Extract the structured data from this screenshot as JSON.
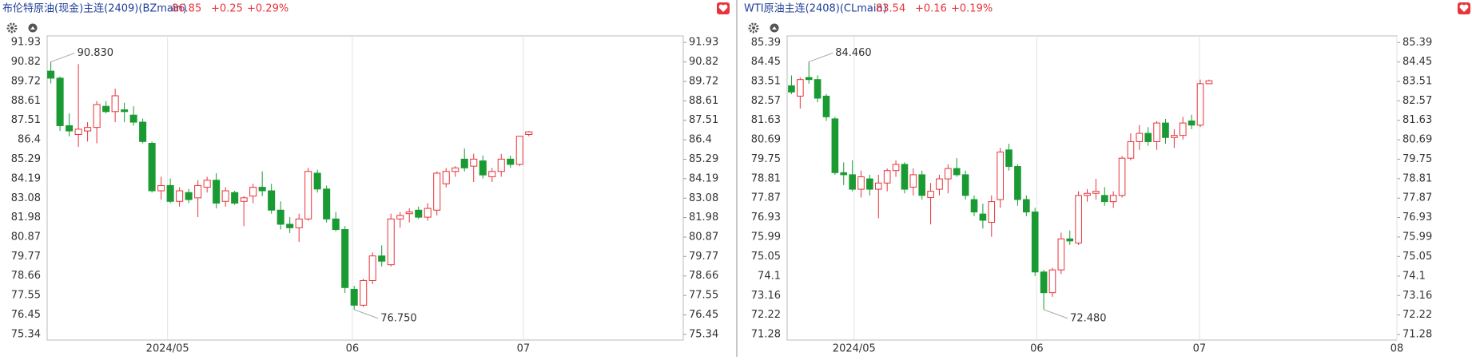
{
  "chart_data": [
    {
      "type": "candlestick",
      "title": "布伦特原油(现金)主连(2409)(BZmain)",
      "last": "86.85",
      "change": "+0.25",
      "change_pct": "+0.29%",
      "up_color": "#e8333a",
      "down_color": "#1a9a32",
      "open": [
        90.3,
        89.9,
        87.2,
        86.7,
        86.9,
        87.1,
        88.3,
        88.0,
        88.1,
        87.8,
        87.4,
        86.2,
        83.5,
        83.8,
        82.9,
        83.4,
        83.1,
        83.7,
        84.1,
        82.9,
        83.4,
        82.9,
        83.2,
        83.7,
        83.5,
        82.4,
        81.6,
        81.4,
        81.9,
        84.5,
        83.6,
        81.9,
        81.3,
        77.9,
        77.0,
        78.4,
        79.8,
        79.3,
        81.9,
        82.2,
        82.4,
        82.0,
        82.4,
        83.9,
        84.6,
        85.3,
        84.9,
        85.2,
        84.3,
        84.6,
        85.3,
        85.0,
        86.7
      ],
      "high": [
        90.83,
        90.0,
        87.9,
        90.7,
        87.4,
        88.6,
        88.6,
        89.3,
        88.5,
        88.3,
        87.6,
        86.3,
        84.3,
        84.2,
        83.7,
        83.6,
        84.1,
        84.3,
        84.5,
        83.7,
        83.5,
        83.2,
        83.9,
        84.6,
        83.9,
        82.9,
        82.0,
        82.2,
        84.8,
        84.7,
        83.8,
        82.3,
        81.5,
        78.1,
        78.5,
        80.0,
        80.4,
        82.2,
        82.3,
        82.5,
        82.6,
        82.8,
        84.6,
        84.8,
        84.9,
        85.9,
        85.6,
        85.5,
        84.8,
        85.6,
        85.5,
        86.6,
        86.9
      ],
      "low": [
        89.6,
        86.9,
        86.6,
        86.0,
        86.3,
        86.2,
        87.9,
        87.4,
        87.4,
        87.2,
        86.2,
        83.4,
        83.0,
        82.8,
        82.6,
        82.8,
        82.0,
        83.4,
        82.5,
        82.6,
        82.7,
        81.5,
        82.8,
        83.2,
        82.2,
        81.3,
        81.1,
        80.6,
        81.8,
        83.4,
        81.7,
        81.2,
        77.7,
        76.75,
        76.9,
        78.2,
        79.2,
        79.2,
        81.4,
        81.7,
        81.9,
        81.8,
        82.1,
        83.7,
        84.3,
        84.6,
        84.0,
        84.2,
        84.0,
        84.3,
        84.8,
        84.9,
        86.6
      ],
      "close": [
        89.9,
        87.2,
        86.9,
        87.0,
        87.1,
        88.4,
        88.0,
        88.9,
        88.0,
        87.4,
        86.3,
        83.5,
        83.8,
        82.9,
        83.5,
        83.0,
        83.8,
        84.1,
        82.8,
        83.5,
        82.8,
        83.1,
        83.7,
        83.5,
        82.4,
        81.6,
        81.4,
        81.9,
        84.6,
        83.6,
        81.9,
        81.3,
        78.0,
        77.0,
        78.4,
        79.8,
        79.5,
        81.9,
        82.1,
        82.3,
        82.0,
        82.5,
        84.5,
        84.6,
        84.8,
        84.8,
        85.3,
        84.4,
        84.6,
        85.3,
        85.0,
        86.6,
        86.85
      ],
      "xlim": [
        -0.4,
        68.8
      ],
      "xticks": [
        {
          "value": 12.7,
          "label": "2024/05"
        },
        {
          "value": 32.8,
          "label": "06"
        },
        {
          "value": 51.4,
          "label": "07"
        }
      ],
      "ylim": [
        75.02,
        92.3
      ],
      "yticks": [
        91.93,
        90.82,
        89.72,
        88.61,
        87.51,
        86.4,
        85.29,
        84.19,
        83.08,
        81.98,
        80.87,
        79.77,
        78.66,
        77.55,
        76.45,
        75.34
      ],
      "annotations": [
        {
          "value": 90.83,
          "label": "90.830"
        },
        {
          "value": 76.75,
          "label": "76.750"
        }
      ]
    },
    {
      "type": "candlestick",
      "title": "WTI原油主连(2408)(CLmain)",
      "last": "83.54",
      "change": "+0.16",
      "change_pct": "+0.19%",
      "up_color": "#e8333a",
      "down_color": "#1a9a32",
      "open": [
        83.3,
        82.8,
        83.7,
        83.6,
        82.8,
        81.7,
        79.1,
        79.0,
        78.3,
        78.8,
        78.3,
        78.6,
        79.2,
        79.5,
        78.4,
        79.0,
        77.9,
        78.3,
        78.8,
        79.3,
        79.0,
        77.8,
        77.1,
        76.7,
        77.8,
        80.2,
        79.4,
        77.8,
        77.2,
        74.3,
        73.3,
        74.4,
        75.9,
        75.7,
        78.0,
        78.1,
        78.0,
        77.7,
        78.0,
        79.8,
        80.6,
        81.0,
        80.6,
        81.5,
        80.8,
        80.9,
        81.6,
        81.4,
        83.4
      ],
      "high": [
        83.8,
        83.7,
        84.46,
        83.8,
        82.9,
        81.8,
        79.6,
        79.7,
        79.2,
        79.0,
        79.0,
        79.3,
        79.7,
        79.6,
        79.3,
        79.2,
        78.6,
        79.0,
        79.5,
        79.8,
        79.2,
        78.0,
        77.6,
        78.0,
        80.3,
        80.5,
        79.5,
        78.0,
        77.4,
        74.4,
        74.5,
        76.2,
        76.3,
        78.2,
        78.3,
        78.8,
        78.4,
        78.2,
        79.9,
        81.0,
        81.4,
        81.3,
        81.6,
        81.7,
        81.2,
        81.8,
        81.9,
        83.6,
        83.6
      ],
      "low": [
        82.9,
        82.2,
        83.4,
        82.5,
        81.6,
        79.0,
        78.5,
        78.2,
        77.9,
        78.0,
        76.9,
        78.2,
        78.9,
        78.1,
        78.0,
        77.8,
        76.6,
        78.0,
        78.1,
        78.9,
        77.8,
        77.0,
        76.4,
        76.0,
        77.4,
        79.2,
        77.5,
        77.0,
        74.1,
        72.48,
        73.1,
        74.2,
        75.6,
        75.6,
        77.7,
        77.8,
        77.5,
        77.4,
        77.9,
        79.7,
        80.2,
        80.4,
        80.2,
        80.5,
        80.3,
        80.7,
        81.2,
        81.3,
        83.4
      ],
      "close": [
        83.0,
        83.6,
        83.6,
        82.7,
        81.8,
        79.1,
        79.0,
        78.3,
        78.9,
        78.3,
        78.6,
        79.2,
        79.5,
        78.3,
        79.0,
        78.0,
        78.2,
        78.8,
        79.3,
        79.0,
        78.0,
        77.2,
        76.8,
        77.7,
        80.1,
        79.4,
        77.8,
        77.2,
        74.3,
        73.3,
        74.4,
        75.9,
        75.8,
        78.0,
        78.1,
        78.2,
        77.7,
        78.0,
        79.8,
        80.6,
        81.0,
        80.6,
        81.5,
        80.8,
        80.9,
        81.5,
        81.4,
        83.4,
        83.54
      ],
      "xlim": [
        -0.5,
        69.6
      ],
      "xticks": [
        {
          "value": 7.2,
          "label": "2024/05"
        },
        {
          "value": 28.2,
          "label": "06"
        },
        {
          "value": 46.9,
          "label": "07"
        },
        {
          "value": 69.6,
          "label": "08"
        }
      ],
      "ylim": [
        71.01,
        85.71
      ],
      "yticks": [
        85.39,
        84.45,
        83.51,
        82.57,
        81.63,
        80.69,
        79.75,
        78.81,
        77.87,
        76.93,
        75.99,
        75.05,
        74.1,
        73.16,
        72.22,
        71.28
      ],
      "annotations": [
        {
          "value": 84.46,
          "label": "84.460"
        },
        {
          "value": 72.48,
          "label": "72.480"
        }
      ]
    }
  ]
}
